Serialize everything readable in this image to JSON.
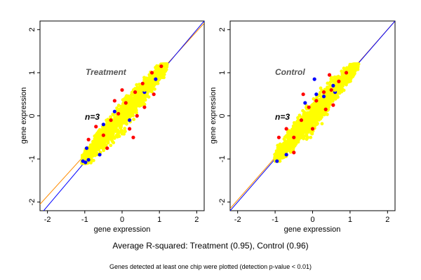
{
  "chart_data": [
    {
      "type": "scatter",
      "title": "Treatment",
      "annotation": "n=3",
      "xlabel": "gene expression",
      "ylabel": "gene expression",
      "xlim": [
        -2.2,
        2.2
      ],
      "ylim": [
        -2.2,
        2.2
      ],
      "x_ticks": [
        -2,
        -1,
        0,
        1,
        2
      ],
      "y_ticks": [
        -2,
        -1,
        0,
        1,
        2
      ],
      "grid": false,
      "point_cloud": {
        "x_range": [
          -1.05,
          1.2
        ],
        "y_range": [
          -1.1,
          1.2
        ],
        "trend": "points cluster along the diagonal y = x"
      },
      "series": [
        {
          "color": "#0000ff",
          "values": [
            [
              -1.05,
              -1.05
            ],
            [
              -0.98,
              -1.08
            ],
            [
              -0.9,
              -1.02
            ],
            [
              -0.95,
              -0.75
            ],
            [
              -0.5,
              -0.2
            ],
            [
              -0.2,
              0.1
            ],
            [
              0.2,
              -0.1
            ],
            [
              0.6,
              0.55
            ],
            [
              0.9,
              0.85
            ],
            [
              -0.6,
              -0.9
            ]
          ]
        },
        {
          "color": "#ff0000",
          "values": [
            [
              -0.9,
              -0.55
            ],
            [
              -0.7,
              -0.25
            ],
            [
              -0.5,
              -0.45
            ],
            [
              -0.3,
              -0.1
            ],
            [
              -0.1,
              0.05
            ],
            [
              0.1,
              0.3
            ],
            [
              0.35,
              0.55
            ],
            [
              0.55,
              0.75
            ],
            [
              0.8,
              1.0
            ],
            [
              1.05,
              1.15
            ],
            [
              0.2,
              -0.3
            ],
            [
              0.4,
              0.0
            ],
            [
              0.6,
              0.2
            ],
            [
              0.85,
              0.5
            ],
            [
              -0.2,
              0.35
            ],
            [
              0.0,
              0.6
            ],
            [
              -0.4,
              -0.75
            ],
            [
              0.3,
              -0.5
            ]
          ]
        },
        {
          "color": "#ffff00",
          "values": [
            [
              -1.0,
              -0.9
            ],
            [
              -0.8,
              -0.7
            ],
            [
              -0.6,
              -0.5
            ],
            [
              -0.4,
              -0.3
            ],
            [
              -0.2,
              -0.15
            ],
            [
              0.0,
              0.05
            ],
            [
              0.2,
              0.25
            ],
            [
              0.4,
              0.4
            ],
            [
              0.6,
              0.6
            ],
            [
              0.8,
              0.85
            ],
            [
              1.0,
              1.0
            ],
            [
              1.2,
              1.2
            ]
          ]
        }
      ],
      "reference_lines": [
        {
          "color": "#ff8c00",
          "from": [
            -2.2,
            -2.05
          ],
          "to": [
            2.2,
            2.15
          ]
        },
        {
          "color": "#0000ff",
          "from": [
            -2.2,
            -2.3
          ],
          "to": [
            2.2,
            2.2
          ]
        }
      ]
    },
    {
      "type": "scatter",
      "title": "Control",
      "annotation": "n=3",
      "xlabel": "gene expression",
      "ylabel": "gene expression",
      "xlim": [
        -2.2,
        2.2
      ],
      "ylim": [
        -2.2,
        2.2
      ],
      "x_ticks": [
        -2,
        -1,
        0,
        1,
        2
      ],
      "y_ticks": [
        -2,
        -1,
        0,
        1,
        2
      ],
      "grid": false,
      "point_cloud": {
        "x_range": [
          -1.0,
          1.2
        ],
        "y_range": [
          -1.05,
          1.2
        ],
        "trend": "points cluster along the diagonal y = x"
      },
      "series": [
        {
          "color": "#0000ff",
          "values": [
            [
              -0.95,
              -1.05
            ],
            [
              -0.7,
              -0.9
            ],
            [
              0.1,
              0.5
            ],
            [
              0.3,
              0.45
            ],
            [
              0.55,
              0.7
            ],
            [
              -0.2,
              0.3
            ],
            [
              0.05,
              0.85
            ],
            [
              0.6,
              0.55
            ]
          ]
        },
        {
          "color": "#ff0000",
          "values": [
            [
              -0.9,
              -0.5
            ],
            [
              -0.7,
              -0.3
            ],
            [
              -0.5,
              -0.5
            ],
            [
              -0.3,
              -0.1
            ],
            [
              -0.1,
              0.2
            ],
            [
              0.1,
              0.35
            ],
            [
              0.3,
              0.55
            ],
            [
              0.5,
              0.6
            ],
            [
              0.7,
              0.8
            ],
            [
              0.9,
              1.0
            ],
            [
              0.35,
              0.15
            ],
            [
              0.55,
              0.25
            ],
            [
              -0.5,
              -0.85
            ],
            [
              0.0,
              -0.3
            ],
            [
              -0.25,
              0.5
            ],
            [
              0.45,
              0.95
            ]
          ]
        },
        {
          "color": "#ffff00",
          "values": [
            [
              -1.0,
              -0.95
            ],
            [
              -0.8,
              -0.75
            ],
            [
              -0.6,
              -0.55
            ],
            [
              -0.4,
              -0.35
            ],
            [
              -0.2,
              -0.2
            ],
            [
              0.0,
              0.0
            ],
            [
              0.2,
              0.2
            ],
            [
              0.4,
              0.4
            ],
            [
              0.6,
              0.6
            ],
            [
              0.8,
              0.8
            ],
            [
              1.0,
              1.0
            ],
            [
              1.2,
              1.2
            ]
          ]
        }
      ],
      "reference_lines": [
        {
          "color": "#ff8c00",
          "from": [
            -2.2,
            -2.15
          ],
          "to": [
            2.2,
            2.2
          ]
        },
        {
          "color": "#0000ff",
          "from": [
            -2.2,
            -2.2
          ],
          "to": [
            2.2,
            2.2
          ]
        }
      ]
    }
  ],
  "summary_text": "Average R-squared: Treatment (0.95), Control (0.96)",
  "footnote_text": "Genes detected at least one chip were plotted (detection p-value < 0.01)"
}
